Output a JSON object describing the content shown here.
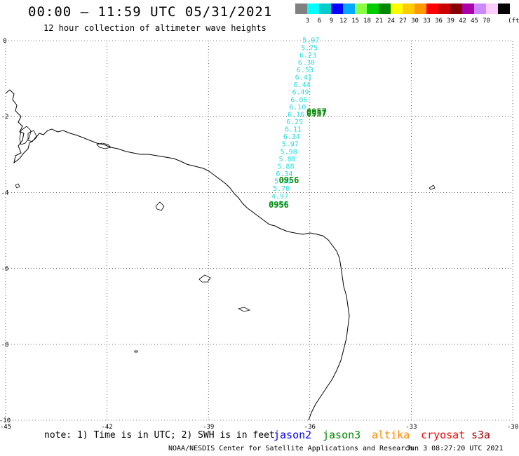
{
  "header": {
    "title": "00:00 – 11:59 UTC 05/31/2021",
    "subtitle": "12 hour collection of altimeter wave heights"
  },
  "legend": {
    "unit": "(ft)",
    "colors": [
      "#808080",
      "#00ffff",
      "#00cccc",
      "#0000ff",
      "#00aaff",
      "#88ff44",
      "#00cc00",
      "#008800",
      "#ffff00",
      "#ffcc00",
      "#ff9900",
      "#ff0000",
      "#cc0000",
      "#880000",
      "#aa00aa",
      "#cc88ff",
      "#ffccff",
      "#000000"
    ],
    "levels": [
      "3",
      "6",
      "9",
      "12",
      "15",
      "18",
      "21",
      "24",
      "27",
      "30",
      "33",
      "36",
      "39",
      "42",
      "45",
      "70"
    ]
  },
  "axes": {
    "x_ticks": [
      "-45",
      "-42",
      "-39",
      "-36",
      "-33",
      "-30"
    ],
    "y_ticks": [
      "0",
      "-2",
      "-4",
      "-6",
      "-8",
      "-10"
    ],
    "x_range": [
      -45,
      -30
    ],
    "y_range": [
      -10,
      0
    ]
  },
  "track": {
    "wave_heights": [
      "5.97",
      "5.75",
      "6.23",
      "6.30",
      "6.53",
      "6.41",
      "6.44",
      "6.49",
      "6.06",
      "6.10",
      "6.16",
      "6.25",
      "6.11",
      "6.34",
      "5.97",
      "5.98",
      "5.88",
      "5.88",
      "6.34",
      "5.90",
      "5.70",
      "4.97",
      "4.04"
    ],
    "time_labels": [
      {
        "text": "0957",
        "lon": -35.8,
        "lat": -1.95
      },
      {
        "text": "0957",
        "lon": -35.8,
        "lat": -2.0
      },
      {
        "text": "0956",
        "lon": -36.62,
        "lat": -3.75
      },
      {
        "text": "0956",
        "lon": -36.92,
        "lat": -4.4
      }
    ]
  },
  "footer": {
    "note": "note: 1) Time is in UTC; 2) SWH is in feet",
    "satellites": [
      {
        "name": "jason2",
        "color": "#0000ff"
      },
      {
        "name": "jason3",
        "color": "#008800"
      },
      {
        "name": "altika",
        "color": "#ff8800"
      },
      {
        "name": "cryosat",
        "color": "#ff0000"
      },
      {
        "name": "s3a",
        "color": "#aa0000"
      }
    ],
    "credit": "NOAA/NESDIS Center for Satellite Applications and Research",
    "updated": "Jun  3 08:27:20 UTC 2021"
  }
}
